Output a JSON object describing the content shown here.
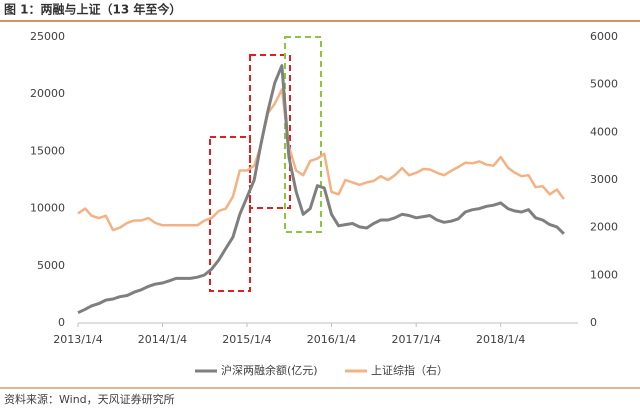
{
  "chart_data": {
    "type": "line",
    "title": "图 1：两融与上证（13 年至今）",
    "source": "资料来源：Wind，天风证券研究所",
    "x": [
      "2013/1/4",
      "2013/2/4",
      "2013/3/4",
      "2013/4/4",
      "2013/5/4",
      "2013/6/4",
      "2013/7/4",
      "2013/8/4",
      "2013/9/4",
      "2013/10/4",
      "2013/11/4",
      "2013/12/4",
      "2014/1/4",
      "2014/2/4",
      "2014/3/4",
      "2014/4/4",
      "2014/5/4",
      "2014/6/4",
      "2014/7/4",
      "2014/8/4",
      "2014/9/4",
      "2014/10/4",
      "2014/11/4",
      "2014/12/4",
      "2015/1/4",
      "2015/2/4",
      "2015/3/4",
      "2015/4/4",
      "2015/5/4",
      "2015/6/4",
      "2015/7/4",
      "2015/8/4",
      "2015/9/4",
      "2015/10/4",
      "2015/11/4",
      "2015/12/4",
      "2016/1/4",
      "2016/2/4",
      "2016/3/4",
      "2016/4/4",
      "2016/5/4",
      "2016/6/4",
      "2016/7/4",
      "2016/8/4",
      "2016/9/4",
      "2016/10/4",
      "2016/11/4",
      "2016/12/4",
      "2017/1/4",
      "2017/2/4",
      "2017/3/4",
      "2017/4/4",
      "2017/5/4",
      "2017/6/4",
      "2017/7/4",
      "2017/8/4",
      "2017/9/4",
      "2017/10/4",
      "2017/11/4",
      "2017/12/4",
      "2018/1/4",
      "2018/2/4",
      "2018/3/4",
      "2018/4/4",
      "2018/5/4",
      "2018/6/4",
      "2018/7/4",
      "2018/8/4",
      "2018/9/4",
      "2018/10/4"
    ],
    "xlim": [
      "2013/1/4",
      "2018/12/4"
    ],
    "xticks": [
      "2013/1/4",
      "2014/1/4",
      "2015/1/4",
      "2016/1/4",
      "2017/1/4",
      "2018/1/4"
    ],
    "ylim": [
      0,
      25000
    ],
    "yticks": [
      0,
      5000,
      10000,
      15000,
      20000,
      25000
    ],
    "y2lim": [
      0,
      6000
    ],
    "y2ticks": [
      0,
      1000,
      2000,
      3000,
      4000,
      5000,
      6000
    ],
    "series": [
      {
        "name": "沪深两融余额(亿元)",
        "color": "#7f7f7f",
        "values": [
          900,
          1200,
          1500,
          1700,
          2000,
          2100,
          2300,
          2400,
          2700,
          2900,
          3200,
          3400,
          3500,
          3700,
          3900,
          3900,
          3900,
          4000,
          4200,
          4700,
          5500,
          6500,
          7500,
          9500,
          11000,
          12500,
          15500,
          18500,
          21000,
          22500,
          14500,
          11500,
          9500,
          10000,
          12000,
          11800,
          9500,
          8500,
          8600,
          8700,
          8400,
          8300,
          8700,
          9000,
          9000,
          9200,
          9500,
          9400,
          9200,
          9300,
          9400,
          9000,
          8800,
          8900,
          9100,
          9700,
          9900,
          10000,
          10200,
          10300,
          10500,
          10000,
          9800,
          9700,
          9900,
          9200,
          9000,
          8600,
          8400,
          7800
        ]
      },
      {
        "name": "上证综指（右）",
        "color": "#f4b183",
        "axis": "y2",
        "values": [
          2300,
          2400,
          2250,
          2200,
          2250,
          1950,
          2000,
          2100,
          2150,
          2150,
          2200,
          2100,
          2050,
          2050,
          2050,
          2050,
          2050,
          2050,
          2150,
          2200,
          2350,
          2400,
          2650,
          3200,
          3200,
          3300,
          3700,
          4400,
          4600,
          4900,
          3700,
          3200,
          3100,
          3400,
          3450,
          3550,
          2750,
          2700,
          3000,
          2950,
          2900,
          2950,
          2980,
          3080,
          3000,
          3100,
          3250,
          3100,
          3150,
          3230,
          3220,
          3150,
          3100,
          3190,
          3270,
          3360,
          3350,
          3390,
          3320,
          3300,
          3480,
          3260,
          3160,
          3080,
          3100,
          2850,
          2870,
          2700,
          2800,
          2600
        ]
      }
    ]
  }
}
